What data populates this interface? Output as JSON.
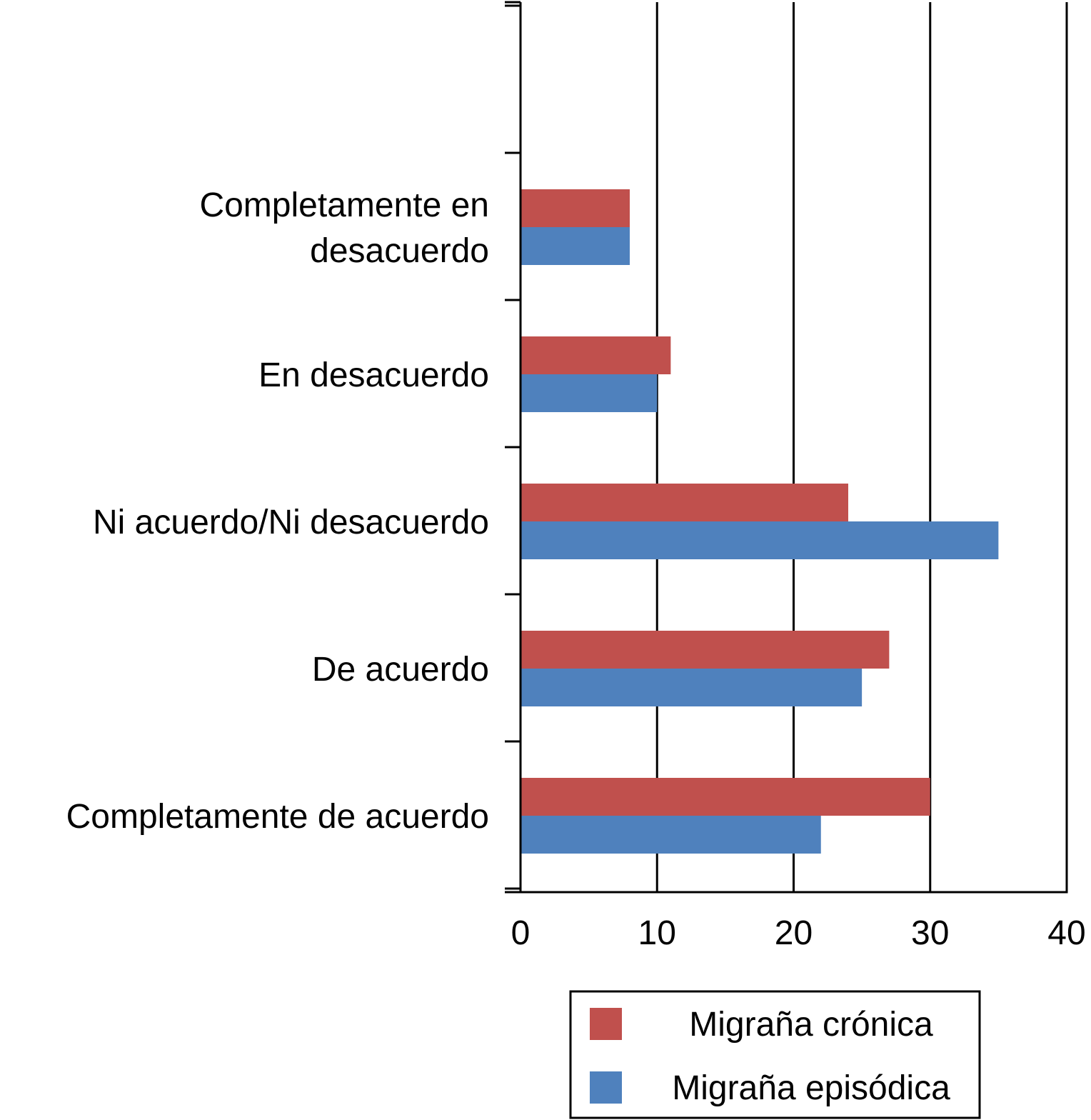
{
  "chart_data": {
    "type": "bar",
    "orientation": "horizontal",
    "title": "",
    "xlabel": "",
    "ylabel": "",
    "xlim": [
      0,
      40
    ],
    "x_ticks": [
      "0",
      "10",
      "20",
      "30",
      "40"
    ],
    "categories": [
      [
        "Completamente en",
        "desacuerdo"
      ],
      [
        "En desacuerdo"
      ],
      [
        "Ni acuerdo/Ni desacuerdo"
      ],
      [
        "De acuerdo"
      ],
      [
        "Completamente de acuerdo"
      ]
    ],
    "series": [
      {
        "name": "Migraña crónica",
        "color": "#c0504d",
        "values": [
          8,
          11,
          24,
          27,
          30
        ]
      },
      {
        "name": "Migraña episódica",
        "color": "#4f81bd",
        "values": [
          8,
          10,
          35,
          25,
          22
        ]
      }
    ],
    "grid": "vertical",
    "legend_position": "bottom"
  }
}
